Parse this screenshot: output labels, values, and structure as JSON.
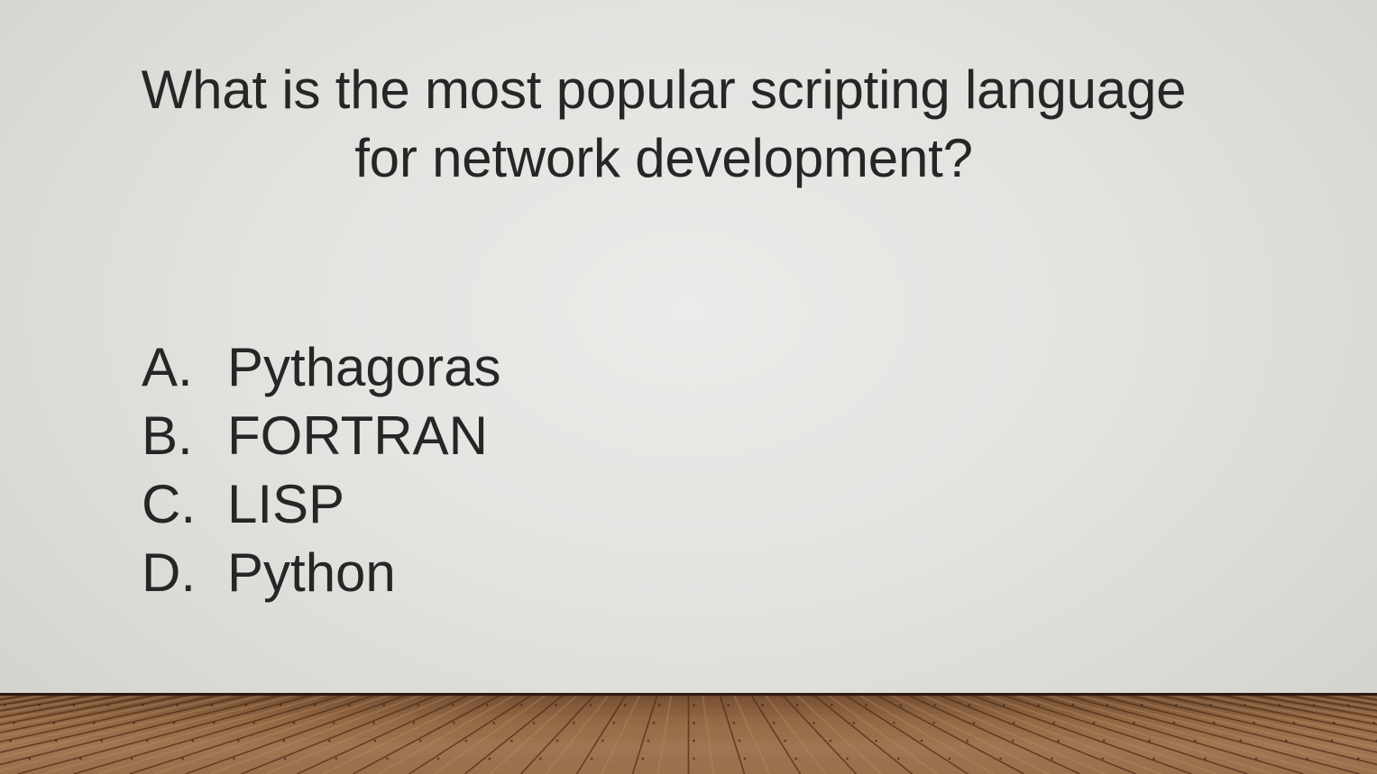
{
  "slide": {
    "title": "What is the most popular scripting language for network development?",
    "answers": [
      {
        "letter": "A.",
        "text": "Pythagoras"
      },
      {
        "letter": "B.",
        "text": "FORTRAN"
      },
      {
        "letter": "C.",
        "text": "LISP"
      },
      {
        "letter": "D.",
        "text": "Python"
      }
    ]
  },
  "colors": {
    "text": "#262626",
    "wall": "#e4e2df",
    "floor": "#946844"
  }
}
